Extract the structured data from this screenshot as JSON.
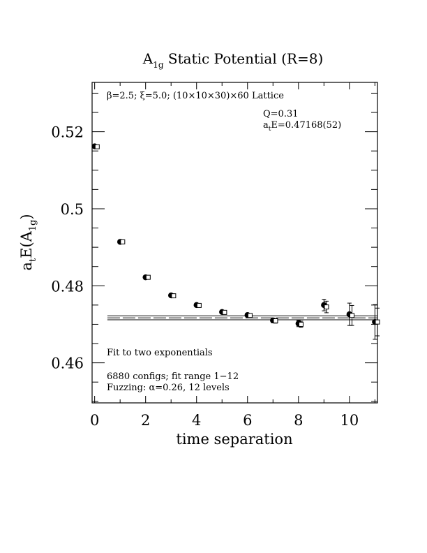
{
  "chart_data": {
    "type": "scatter",
    "title": "A",
    "title_sub": "1g",
    "title_rest": " Static Potential (R=8)",
    "xlabel": "time separation",
    "ylabel_main": "a",
    "ylabel_sub1": "t",
    "ylabel_mid": "E(A",
    "ylabel_sub2": "1g",
    "ylabel_end": ")",
    "xlim": [
      -0.1,
      11.1
    ],
    "ylim": [
      0.4496,
      0.5328
    ],
    "x_ticks": [
      0,
      2,
      4,
      6,
      8,
      10
    ],
    "x_tick_labels": [
      "0",
      "2",
      "4",
      "6",
      "8",
      "10"
    ],
    "y_ticks": [
      0.46,
      0.48,
      0.5,
      0.52
    ],
    "y_tick_labels": [
      "0.46",
      "0.48",
      "0.5",
      "0.52"
    ],
    "grid": false,
    "annotations": {
      "lattice_line": "β=2.5; ξ=5.0; (10×10×30)×60 Lattice",
      "q_value": "Q=0.31",
      "energy_prefix": "a",
      "energy_sub": "t",
      "energy_rest": "E=0.47168(52)",
      "fit_label": "Fit to two exponentials",
      "configs_line": "6880 configs; fit range 1−12",
      "fuzzing_line": "Fuzzing: α=0.26, 12 levels"
    },
    "fit": {
      "value": 0.47168,
      "error": 0.00052,
      "x_range": [
        0.5,
        11.1
      ]
    },
    "series": [
      {
        "marker": "filled-circle",
        "x": [
          0,
          1,
          2,
          3,
          4,
          5,
          6,
          7,
          8,
          9,
          10,
          11
        ],
        "y": [
          0.5162,
          0.4914,
          0.4822,
          0.4775,
          0.475,
          0.4732,
          0.4724,
          0.471,
          0.4702,
          0.475,
          0.4726,
          0.4706
        ],
        "err": [
          0.0003,
          0.0003,
          0.0003,
          0.0004,
          0.0004,
          0.0004,
          0.0005,
          0.0006,
          0.0008,
          0.0015,
          0.0029,
          0.0045
        ]
      },
      {
        "marker": "open-square",
        "x": [
          0.1,
          1.1,
          2.1,
          3.1,
          4.1,
          5.1,
          6.1,
          7.1,
          8.1,
          9.1,
          10.1,
          11.1
        ],
        "y": [
          0.5161,
          0.4914,
          0.4822,
          0.4774,
          0.4749,
          0.4731,
          0.4723,
          0.4709,
          0.47,
          0.4745,
          0.4723,
          0.4706
        ],
        "err": [
          0.0003,
          0.0003,
          0.0003,
          0.0004,
          0.0004,
          0.0004,
          0.0005,
          0.0006,
          0.0008,
          0.0015,
          0.0026,
          0.0036
        ]
      }
    ]
  }
}
